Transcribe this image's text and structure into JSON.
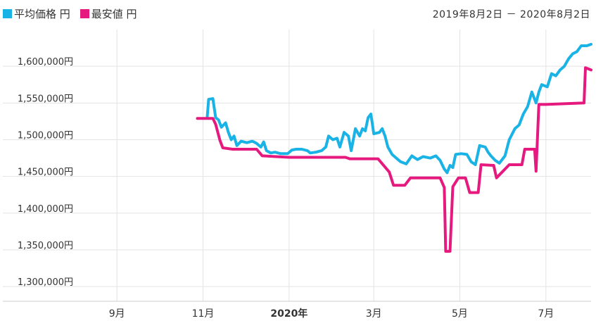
{
  "legend": {
    "avg_label": "平均価格 円",
    "min_label": "最安値 円"
  },
  "date_range": "2019年8月2日 － 2020年8月2日",
  "colors": {
    "avg": "#1ab3e6",
    "min": "#e6197f"
  },
  "chart_data": {
    "type": "line",
    "x_unit": "date",
    "xlim": [
      "2019-08-02",
      "2020-08-02"
    ],
    "ylim": [
      1280000,
      1650000
    ],
    "grid": true,
    "legend_position": "top-left",
    "x_ticks": [
      {
        "date": "2019-09-01",
        "label": "9月",
        "bold": false
      },
      {
        "date": "2019-11-01",
        "label": "11月",
        "bold": false
      },
      {
        "date": "2020-01-01",
        "label": "2020年",
        "bold": true
      },
      {
        "date": "2020-03-01",
        "label": "3月",
        "bold": false
      },
      {
        "date": "2020-05-01",
        "label": "5月",
        "bold": false
      },
      {
        "date": "2020-07-01",
        "label": "7月",
        "bold": false
      }
    ],
    "y_ticks": [
      {
        "value": 1300000,
        "label": "1,300,000円"
      },
      {
        "value": 1350000,
        "label": "1,350,000円"
      },
      {
        "value": 1400000,
        "label": "1,400,000円"
      },
      {
        "value": 1450000,
        "label": "1,450,000円"
      },
      {
        "value": 1500000,
        "label": "1,500,000円"
      },
      {
        "value": 1550000,
        "label": "1,550,000円"
      },
      {
        "value": 1600000,
        "label": "1,600,000円"
      }
    ],
    "series": [
      {
        "name": "平均価格 円",
        "color": "#1ab3e6",
        "points": [
          [
            "2019-11-04",
            1531000
          ],
          [
            "2019-11-05",
            1555000
          ],
          [
            "2019-11-08",
            1556000
          ],
          [
            "2019-11-10",
            1530000
          ],
          [
            "2019-11-12",
            1527000
          ],
          [
            "2019-11-14",
            1517000
          ],
          [
            "2019-11-17",
            1523000
          ],
          [
            "2019-11-19",
            1510000
          ],
          [
            "2019-11-21",
            1500000
          ],
          [
            "2019-11-23",
            1505000
          ],
          [
            "2019-11-25",
            1492000
          ],
          [
            "2019-11-28",
            1498000
          ],
          [
            "2019-12-02",
            1496000
          ],
          [
            "2019-12-06",
            1498000
          ],
          [
            "2019-12-09",
            1495000
          ],
          [
            "2019-12-12",
            1490000
          ],
          [
            "2019-12-14",
            1497000
          ],
          [
            "2019-12-16",
            1485000
          ],
          [
            "2019-12-19",
            1482000
          ],
          [
            "2019-12-22",
            1483000
          ],
          [
            "2019-12-26",
            1481000
          ],
          [
            "2019-12-31",
            1481000
          ],
          [
            "2020-01-03",
            1486000
          ],
          [
            "2020-01-06",
            1487000
          ],
          [
            "2020-01-10",
            1487000
          ],
          [
            "2020-01-14",
            1485000
          ],
          [
            "2020-01-16",
            1482000
          ],
          [
            "2020-01-20",
            1483000
          ],
          [
            "2020-01-24",
            1485000
          ],
          [
            "2020-01-27",
            1490000
          ],
          [
            "2020-01-29",
            1505000
          ],
          [
            "2020-02-01",
            1500000
          ],
          [
            "2020-02-04",
            1502000
          ],
          [
            "2020-02-06",
            1490000
          ],
          [
            "2020-02-09",
            1510000
          ],
          [
            "2020-02-12",
            1505000
          ],
          [
            "2020-02-14",
            1485000
          ],
          [
            "2020-02-17",
            1515000
          ],
          [
            "2020-02-20",
            1505000
          ],
          [
            "2020-02-22",
            1515000
          ],
          [
            "2020-02-24",
            1512000
          ],
          [
            "2020-02-26",
            1530000
          ],
          [
            "2020-02-28",
            1535000
          ],
          [
            "2020-03-01",
            1508000
          ],
          [
            "2020-03-05",
            1510000
          ],
          [
            "2020-03-07",
            1515000
          ],
          [
            "2020-03-09",
            1505000
          ],
          [
            "2020-03-11",
            1490000
          ],
          [
            "2020-03-14",
            1480000
          ],
          [
            "2020-03-17",
            1475000
          ],
          [
            "2020-03-20",
            1470000
          ],
          [
            "2020-03-24",
            1467000
          ],
          [
            "2020-03-28",
            1478000
          ],
          [
            "2020-04-01",
            1473000
          ],
          [
            "2020-04-05",
            1477000
          ],
          [
            "2020-04-10",
            1475000
          ],
          [
            "2020-04-14",
            1478000
          ],
          [
            "2020-04-17",
            1472000
          ],
          [
            "2020-04-20",
            1460000
          ],
          [
            "2020-04-22",
            1455000
          ],
          [
            "2020-04-24",
            1465000
          ],
          [
            "2020-04-26",
            1462000
          ],
          [
            "2020-04-28",
            1480000
          ],
          [
            "2020-05-02",
            1481000
          ],
          [
            "2020-05-06",
            1480000
          ],
          [
            "2020-05-09",
            1470000
          ],
          [
            "2020-05-12",
            1466000
          ],
          [
            "2020-05-15",
            1492000
          ],
          [
            "2020-05-19",
            1490000
          ],
          [
            "2020-05-21",
            1483000
          ],
          [
            "2020-05-23",
            1478000
          ],
          [
            "2020-05-26",
            1472000
          ],
          [
            "2020-05-29",
            1468000
          ],
          [
            "2020-06-02",
            1478000
          ],
          [
            "2020-06-05",
            1500000
          ],
          [
            "2020-06-09",
            1515000
          ],
          [
            "2020-06-12",
            1520000
          ],
          [
            "2020-06-15",
            1535000
          ],
          [
            "2020-06-18",
            1545000
          ],
          [
            "2020-06-21",
            1565000
          ],
          [
            "2020-06-24",
            1550000
          ],
          [
            "2020-06-26",
            1565000
          ],
          [
            "2020-06-28",
            1575000
          ],
          [
            "2020-07-02",
            1572000
          ],
          [
            "2020-07-05",
            1590000
          ],
          [
            "2020-07-08",
            1587000
          ],
          [
            "2020-07-11",
            1595000
          ],
          [
            "2020-07-14",
            1600000
          ],
          [
            "2020-07-17",
            1610000
          ],
          [
            "2020-07-20",
            1617000
          ],
          [
            "2020-07-23",
            1620000
          ],
          [
            "2020-07-26",
            1628000
          ],
          [
            "2020-07-30",
            1628000
          ],
          [
            "2020-08-02",
            1630000
          ]
        ]
      },
      {
        "name": "最安値 円",
        "color": "#e6197f",
        "points": [
          [
            "2019-10-28",
            1529000
          ],
          [
            "2019-11-08",
            1529000
          ],
          [
            "2019-11-10",
            1521000
          ],
          [
            "2019-11-13",
            1499000
          ],
          [
            "2019-11-15",
            1489000
          ],
          [
            "2019-11-22",
            1487000
          ],
          [
            "2019-12-09",
            1487000
          ],
          [
            "2019-12-13",
            1478000
          ],
          [
            "2020-01-01",
            1476000
          ],
          [
            "2020-02-10",
            1476000
          ],
          [
            "2020-02-13",
            1474000
          ],
          [
            "2020-03-04",
            1474000
          ],
          [
            "2020-03-08",
            1465000
          ],
          [
            "2020-03-12",
            1456000
          ],
          [
            "2020-03-15",
            1438000
          ],
          [
            "2020-03-23",
            1438000
          ],
          [
            "2020-03-27",
            1448000
          ],
          [
            "2020-04-17",
            1448000
          ],
          [
            "2020-04-20",
            1435000
          ],
          [
            "2020-04-21",
            1348000
          ],
          [
            "2020-04-24",
            1348000
          ],
          [
            "2020-04-26",
            1436000
          ],
          [
            "2020-04-30",
            1448000
          ],
          [
            "2020-05-05",
            1448000
          ],
          [
            "2020-05-08",
            1428000
          ],
          [
            "2020-05-14",
            1428000
          ],
          [
            "2020-05-16",
            1466000
          ],
          [
            "2020-05-25",
            1465000
          ],
          [
            "2020-05-27",
            1448000
          ],
          [
            "2020-06-05",
            1466000
          ],
          [
            "2020-06-14",
            1466000
          ],
          [
            "2020-06-16",
            1487000
          ],
          [
            "2020-06-23",
            1487000
          ],
          [
            "2020-06-24",
            1457000
          ],
          [
            "2020-06-26",
            1548000
          ],
          [
            "2020-07-01",
            1548000
          ],
          [
            "2020-07-28",
            1550000
          ],
          [
            "2020-07-29",
            1598000
          ],
          [
            "2020-08-02",
            1595000
          ]
        ]
      }
    ]
  }
}
